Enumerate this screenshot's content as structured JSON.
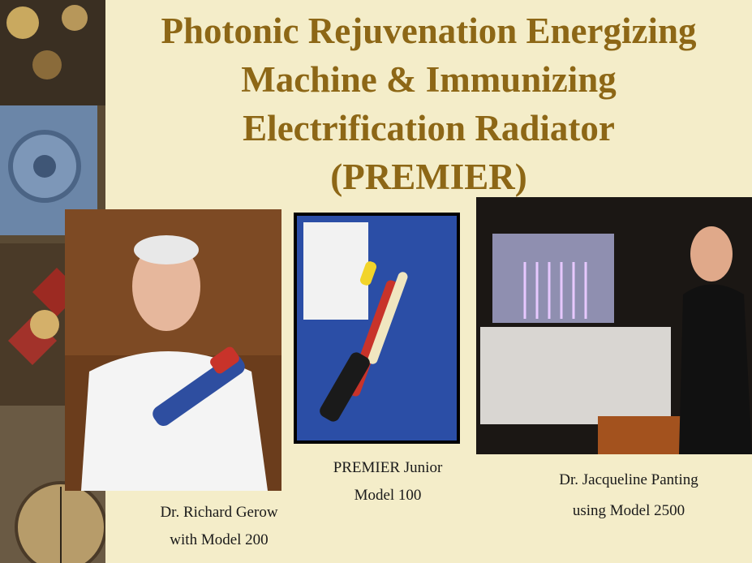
{
  "slide": {
    "title_lines": [
      "Photonic Rejuvenation Energizing",
      "Machine & Immunizing",
      "Electrification Radiator",
      "(PREMIER)"
    ],
    "photos": [
      {
        "caption_lines": [
          "Dr. Richard Gerow",
          "with Model 200"
        ]
      },
      {
        "caption_lines": [
          "PREMIER Junior",
          "Model 100"
        ]
      },
      {
        "caption_lines": [
          "Dr. Jacqueline Panting",
          "using Model 2500"
        ]
      }
    ]
  }
}
